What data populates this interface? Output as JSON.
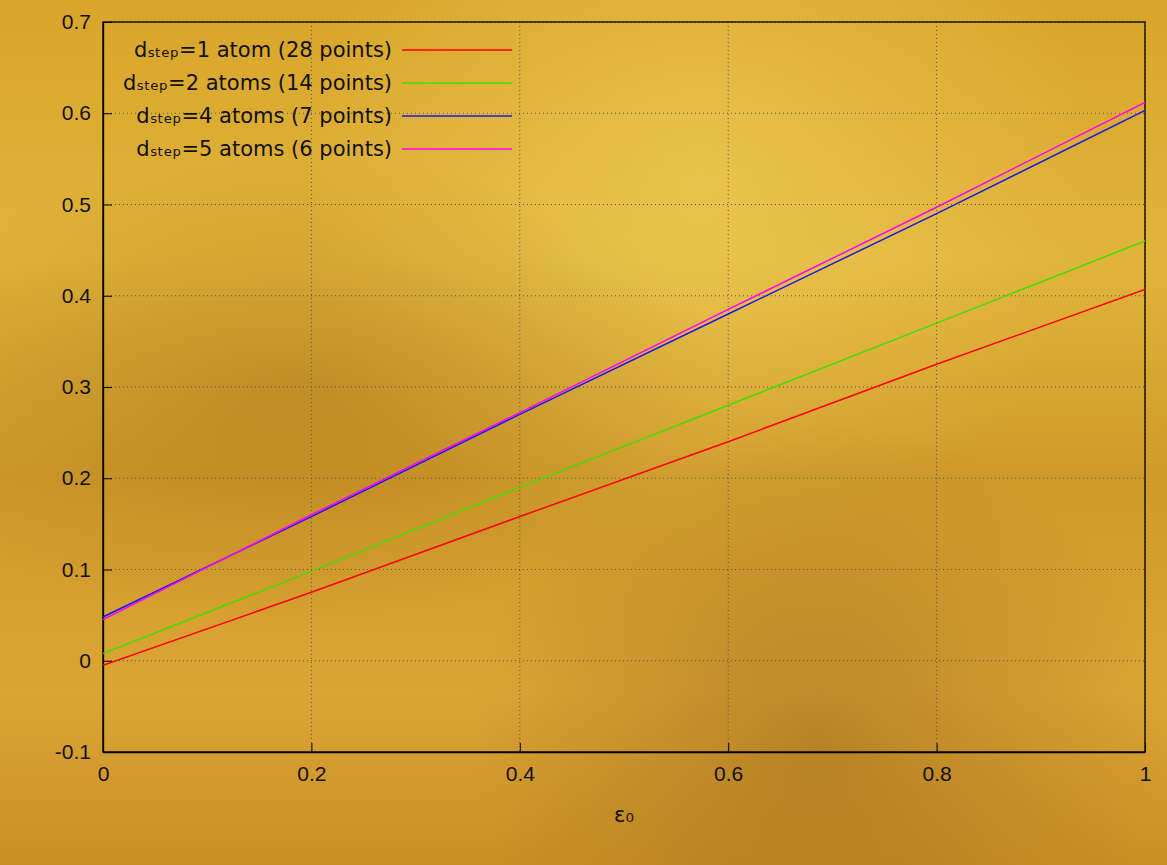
{
  "chart_data": {
    "type": "line",
    "x_label": "ε₀",
    "x": [
      0,
      0.2,
      0.4,
      0.6,
      0.8,
      1
    ],
    "series": [
      {
        "name": "dₛₜₑₚ=1 atom (28 points)",
        "color": "#ff0000",
        "values": [
          -0.005,
          0.075,
          0.158,
          0.24,
          0.325,
          0.407
        ]
      },
      {
        "name": "dₛₜₑₚ=2 atoms (14 points)",
        "color": "#44dd00",
        "values": [
          0.008,
          0.098,
          0.19,
          0.28,
          0.37,
          0.46
        ]
      },
      {
        "name": "dₛₜₑₚ=4 atoms (7 points)",
        "color": "#1a1ae6",
        "values": [
          0.048,
          0.158,
          0.27,
          0.38,
          0.49,
          0.603
        ]
      },
      {
        "name": "dₛₜₑₚ=5 atoms (6 points)",
        "color": "#ff00ff",
        "values": [
          0.045,
          0.16,
          0.272,
          0.385,
          0.497,
          0.612
        ]
      }
    ],
    "xlim": [
      0,
      1
    ],
    "ylim": [
      -0.1,
      0.7
    ],
    "xticks": [
      0,
      0.2,
      0.4,
      0.6,
      0.8,
      1
    ],
    "yticks": [
      -0.1,
      0,
      0.1,
      0.2,
      0.3,
      0.4,
      0.5,
      0.6,
      0.7
    ],
    "grid": true,
    "legend": "top-left"
  }
}
